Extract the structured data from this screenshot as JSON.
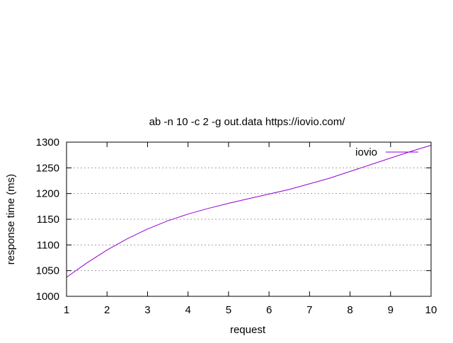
{
  "chart_data": {
    "type": "line",
    "title": "ab -n 10 -c 2 -g out.data https://iovio.com/",
    "xlabel": "request",
    "ylabel": "response time (ms)",
    "xlim": [
      1,
      10
    ],
    "ylim": [
      1000,
      1300
    ],
    "xticks": [
      1,
      2,
      3,
      4,
      5,
      6,
      7,
      8,
      9,
      10
    ],
    "yticks": [
      1000,
      1050,
      1100,
      1150,
      1200,
      1250,
      1300
    ],
    "grid": "horizontal-dotted",
    "legend_position": "top-right",
    "series": [
      {
        "name": "iovio",
        "color": "#9400d3",
        "x": [
          1,
          1.5,
          2,
          2.5,
          3,
          3.5,
          4,
          4.5,
          5,
          5.5,
          6,
          6.5,
          7,
          7.5,
          8,
          8.5,
          9,
          9.5,
          10
        ],
        "y": [
          1037,
          1065,
          1090,
          1112,
          1131,
          1147,
          1160,
          1171,
          1181,
          1190,
          1199,
          1208,
          1219,
          1230,
          1243,
          1256,
          1269,
          1282,
          1294
        ]
      }
    ]
  }
}
